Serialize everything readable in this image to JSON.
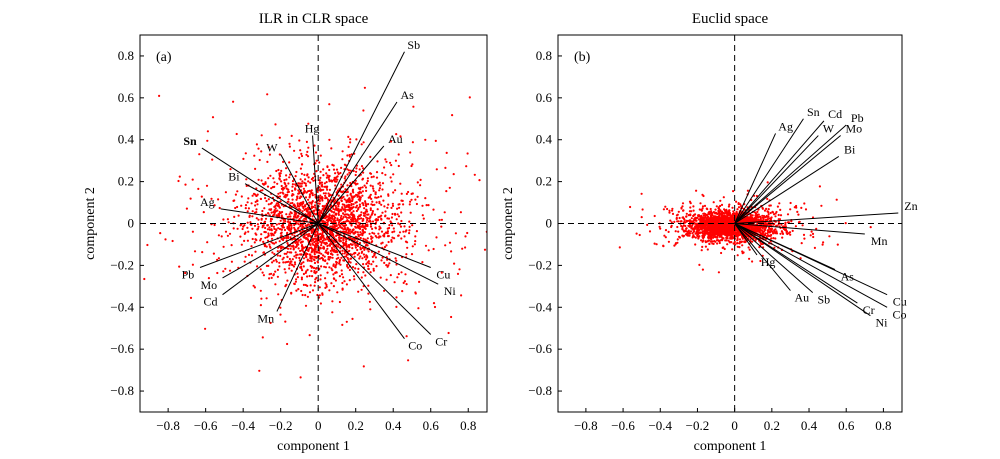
{
  "chart_data": [
    {
      "type": "scatter",
      "title": "ILR in CLR space",
      "panel_label": "(a)",
      "xlabel": "component 1",
      "ylabel": "component 2",
      "xlim": [
        -0.95,
        0.9
      ],
      "ylim": [
        -0.9,
        0.9
      ],
      "xticks": [
        -0.8,
        -0.6,
        -0.4,
        -0.2,
        0,
        0.2,
        0.4,
        0.6,
        0.8
      ],
      "yticks": [
        -0.8,
        -0.6,
        -0.4,
        -0.2,
        0,
        0.2,
        0.4,
        0.6,
        0.8
      ],
      "reference_lines": "dashed at x=0 and y=0",
      "points_color": "#ff0000",
      "cloud": {
        "center": [
          0.03,
          0.0
        ],
        "spread": [
          0.2,
          0.13
        ],
        "approx_count": 2500
      },
      "vectors": [
        {
          "name": "Sb",
          "x": 0.46,
          "y": 0.82,
          "bold": false
        },
        {
          "name": "As",
          "x": 0.42,
          "y": 0.58,
          "bold": false
        },
        {
          "name": "Au",
          "x": 0.35,
          "y": 0.37,
          "bold": false
        },
        {
          "name": "Hg",
          "x": -0.03,
          "y": 0.42,
          "bold": false
        },
        {
          "name": "W",
          "x": -0.2,
          "y": 0.33,
          "bold": false
        },
        {
          "name": "Sn",
          "x": -0.62,
          "y": 0.36,
          "bold": true
        },
        {
          "name": "Bi",
          "x": -0.39,
          "y": 0.19,
          "bold": false
        },
        {
          "name": "Ag",
          "x": -0.52,
          "y": 0.07,
          "bold": false
        },
        {
          "name": "Pb",
          "x": -0.63,
          "y": -0.21,
          "bold": false
        },
        {
          "name": "Mo",
          "x": -0.51,
          "y": -0.26,
          "bold": false
        },
        {
          "name": "Cd",
          "x": -0.51,
          "y": -0.34,
          "bold": false
        },
        {
          "name": "Mn",
          "x": -0.22,
          "y": -0.42,
          "bold": false
        },
        {
          "name": "Cu",
          "x": 0.6,
          "y": -0.21,
          "bold": false
        },
        {
          "name": "Ni",
          "x": 0.64,
          "y": -0.29,
          "bold": false
        },
        {
          "name": "Cr",
          "x": 0.6,
          "y": -0.53,
          "bold": false
        },
        {
          "name": "Co",
          "x": 0.46,
          "y": -0.55,
          "bold": false
        }
      ]
    },
    {
      "type": "scatter",
      "title": "Euclid space",
      "panel_label": "(b)",
      "xlabel": "component 1",
      "ylabel": "component 2",
      "xlim": [
        -0.95,
        0.9
      ],
      "ylim": [
        -0.9,
        0.9
      ],
      "xticks": [
        -0.8,
        -0.6,
        -0.4,
        -0.2,
        0,
        0.2,
        0.4,
        0.6,
        0.8
      ],
      "yticks": [
        -0.8,
        -0.6,
        -0.4,
        -0.2,
        0,
        0.2,
        0.4,
        0.6,
        0.8
      ],
      "reference_lines": "dashed at x=0 and y=0",
      "points_color": "#ff0000",
      "cloud": {
        "center": [
          -0.02,
          -0.01
        ],
        "spread": [
          0.11,
          0.035
        ],
        "approx_count": 2500
      },
      "vectors": [
        {
          "name": "Ag",
          "x": 0.22,
          "y": 0.43,
          "bold": false
        },
        {
          "name": "Sn",
          "x": 0.37,
          "y": 0.5,
          "bold": false
        },
        {
          "name": "Cd",
          "x": 0.48,
          "y": 0.49,
          "bold": false
        },
        {
          "name": "Pb",
          "x": 0.6,
          "y": 0.47,
          "bold": false
        },
        {
          "name": "W",
          "x": 0.45,
          "y": 0.42,
          "bold": false
        },
        {
          "name": "Mo",
          "x": 0.57,
          "y": 0.42,
          "bold": false
        },
        {
          "name": "Bi",
          "x": 0.56,
          "y": 0.32,
          "bold": false
        },
        {
          "name": "Zn",
          "x": 0.88,
          "y": 0.05,
          "bold": false
        },
        {
          "name": "Mn",
          "x": 0.7,
          "y": -0.05,
          "bold": false
        },
        {
          "name": "Hg",
          "x": 0.12,
          "y": -0.15,
          "bold": false
        },
        {
          "name": "As",
          "x": 0.54,
          "y": -0.22,
          "bold": false
        },
        {
          "name": "Au",
          "x": 0.3,
          "y": -0.32,
          "bold": false
        },
        {
          "name": "Sb",
          "x": 0.42,
          "y": -0.33,
          "bold": false
        },
        {
          "name": "Cu",
          "x": 0.82,
          "y": -0.34,
          "bold": false
        },
        {
          "name": "Co",
          "x": 0.82,
          "y": -0.4,
          "bold": false
        },
        {
          "name": "Cr",
          "x": 0.66,
          "y": -0.38,
          "bold": false
        },
        {
          "name": "Ni",
          "x": 0.73,
          "y": -0.44,
          "bold": false
        }
      ]
    }
  ]
}
